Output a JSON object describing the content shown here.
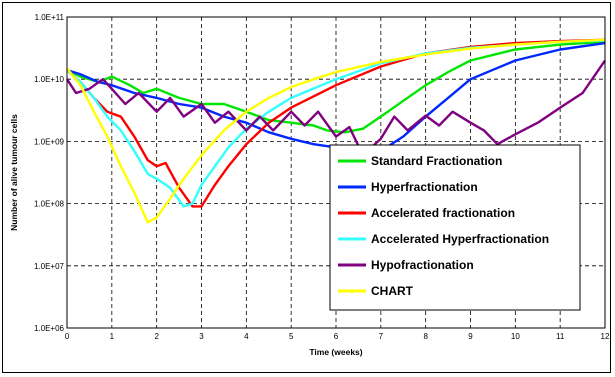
{
  "chart_data": {
    "type": "line",
    "xlabel": "Time (weeks)",
    "ylabel": "Number of alive tumour cells",
    "xlim": [
      0,
      12
    ],
    "ylim": [
      1000000,
      100000000000
    ],
    "yscale": "log",
    "x_ticks": [
      "0",
      "1",
      "2",
      "3",
      "4",
      "5",
      "6",
      "7",
      "8",
      "9",
      "10",
      "11",
      "12"
    ],
    "y_ticks": [
      "1.0E+06",
      "1.0E+07",
      "1.0E+08",
      "1.0E+09",
      "1.0E+10",
      "1.0E+11"
    ],
    "grid": true,
    "legend_position": "bottom-right",
    "series": [
      {
        "name": "Standard Fractionation",
        "color": "#00e600",
        "x": [
          0,
          0.3,
          0.7,
          1.0,
          1.4,
          1.7,
          2.0,
          2.5,
          3.0,
          3.5,
          4.0,
          4.5,
          5.0,
          5.5,
          5.8,
          6.2,
          6.6,
          7.0,
          7.5,
          8.0,
          8.5,
          9.0,
          10.0,
          11.0,
          12.0
        ],
        "y": [
          14000000000,
          11000000000,
          9000000000,
          11000000000,
          8000000000,
          6000000000,
          7000000000,
          5000000000,
          4000000000,
          4000000000,
          3000000000,
          2200000000,
          2000000000,
          1800000000,
          1500000000,
          1400000000,
          1600000000,
          2500000000,
          4500000000,
          8000000000,
          13000000000,
          20000000000,
          30000000000,
          36000000000,
          40000000000
        ]
      },
      {
        "name": "Hyperfractionation",
        "color": "#0028ff",
        "x": [
          0,
          0.3,
          0.7,
          1.0,
          1.5,
          2.0,
          2.5,
          3.0,
          3.5,
          4.0,
          4.5,
          5.0,
          5.5,
          6.0,
          6.5,
          7.0,
          7.5,
          8.0,
          8.5,
          9.0,
          10.0,
          11.0,
          12.0
        ],
        "y": [
          14000000000,
          12000000000,
          9000000000,
          8000000000,
          6000000000,
          5000000000,
          4000000000,
          3500000000,
          2500000000,
          2000000000,
          1400000000,
          1100000000,
          900000000,
          800000000,
          700000000,
          700000000,
          1200000000,
          2500000000,
          5000000000,
          10000000000,
          20000000000,
          30000000000,
          38000000000
        ]
      },
      {
        "name": "Accelerated fractionation",
        "color": "#ff0000",
        "x": [
          0,
          0.3,
          0.6,
          0.9,
          1.2,
          1.5,
          1.8,
          2.0,
          2.2,
          2.5,
          2.8,
          3.0,
          3.3,
          3.6,
          4.0,
          4.5,
          5.0,
          6.0,
          7.0,
          8.0,
          9.0,
          10.0,
          11.0,
          12.0
        ],
        "y": [
          14000000000,
          9000000000,
          5000000000,
          3000000000,
          2500000000,
          1200000000,
          500000000,
          400000000,
          450000000,
          180000000,
          90000000,
          90000000,
          200000000,
          400000000,
          900000000,
          2000000000,
          3500000000,
          8000000000,
          16000000000,
          26000000000,
          33000000000,
          38000000000,
          41000000000,
          43000000000
        ]
      },
      {
        "name": "Accelerated Hyperfractionation",
        "color": "#33ffff",
        "x": [
          0,
          0.3,
          0.6,
          0.9,
          1.2,
          1.5,
          1.8,
          2.0,
          2.3,
          2.6,
          2.8,
          3.0,
          3.3,
          3.6,
          4.0,
          4.5,
          5.0,
          6.0,
          7.0,
          8.0,
          9.0,
          10.0,
          11.0,
          12.0
        ],
        "y": [
          14000000000,
          9000000000,
          5000000000,
          2500000000,
          1500000000,
          700000000,
          300000000,
          250000000,
          180000000,
          90000000,
          100000000,
          200000000,
          400000000,
          800000000,
          1600000000,
          3000000000,
          5000000000,
          10000000000,
          18000000000,
          26000000000,
          32000000000,
          36000000000,
          40000000000,
          42000000000
        ]
      },
      {
        "name": "Hypofractionation",
        "color": "#800080",
        "x": [
          0,
          0.2,
          0.5,
          0.8,
          1.0,
          1.3,
          1.6,
          2.0,
          2.3,
          2.6,
          3.0,
          3.3,
          3.6,
          4.0,
          4.3,
          4.6,
          5.0,
          5.3,
          5.6,
          6.0,
          6.3,
          6.6,
          7.0,
          7.3,
          7.6,
          8.0,
          8.3,
          8.6,
          9.0,
          9.3,
          9.6,
          10.0,
          10.5,
          11.0,
          11.5,
          12.0
        ],
        "y": [
          10000000000,
          6000000000,
          7000000000,
          10000000000,
          7000000000,
          4000000000,
          6000000000,
          3000000000,
          5000000000,
          2500000000,
          4000000000,
          2000000000,
          3000000000,
          1500000000,
          2500000000,
          1500000000,
          3000000000,
          1800000000,
          3000000000,
          1200000000,
          1700000000,
          600000000,
          1100000000,
          2500000000,
          1500000000,
          2600000000,
          1800000000,
          3000000000,
          2000000000,
          1500000000,
          900000000,
          1300000000,
          2000000000,
          3500000000,
          6000000000,
          20000000000
        ]
      },
      {
        "name": "CHART",
        "color": "#ffff00",
        "x": [
          0,
          0.3,
          0.6,
          0.9,
          1.2,
          1.5,
          1.8,
          2.0,
          2.3,
          2.6,
          3.0,
          3.5,
          4.0,
          4.5,
          5.0,
          5.5,
          6.0,
          7.0,
          8.0,
          9.0,
          10.0,
          11.0,
          12.0
        ],
        "y": [
          15000000000,
          8000000000,
          3000000000,
          1200000000,
          400000000,
          150000000,
          50000000,
          60000000,
          120000000,
          250000000,
          600000000,
          1500000000,
          3000000000,
          5000000000,
          7500000000,
          10000000000,
          13000000000,
          19000000000,
          25000000000,
          31000000000,
          36000000000,
          40000000000,
          43000000000
        ]
      }
    ]
  }
}
